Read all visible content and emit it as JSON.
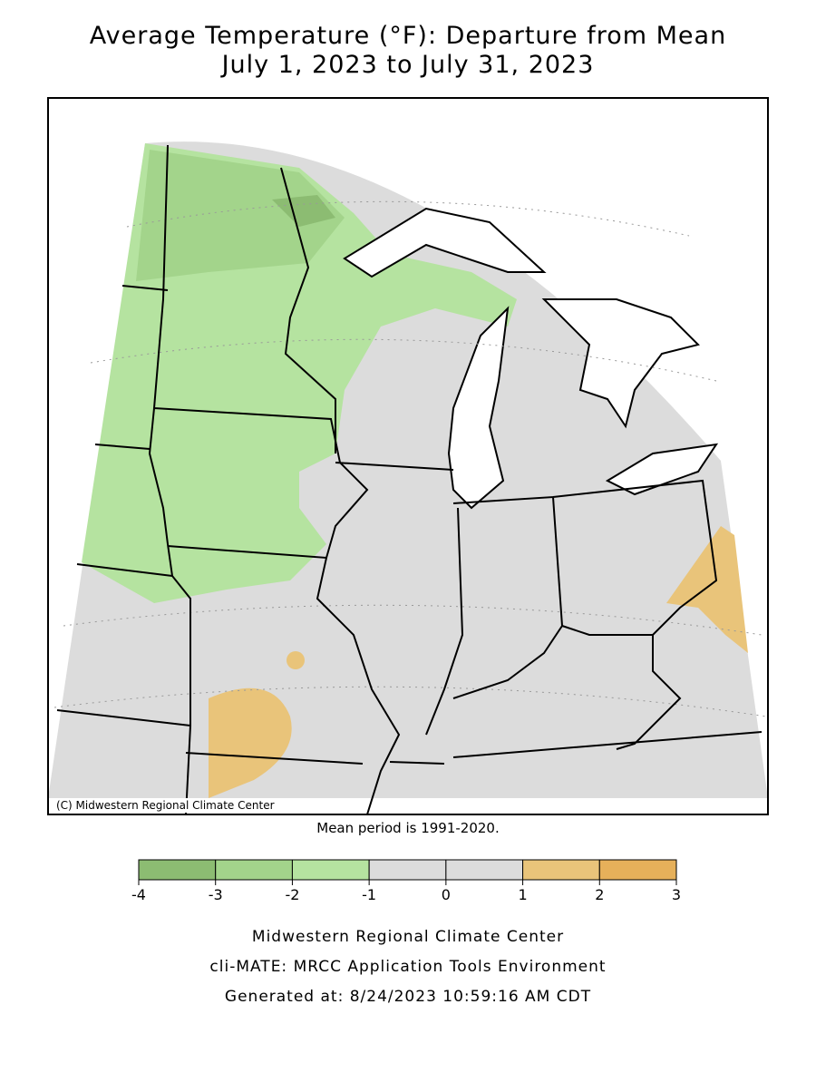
{
  "title": [
    "Average Temperature (°F): Departure from Mean",
    "July 1, 2023 to July 31, 2023"
  ],
  "map": {
    "copyright": "(C) Midwestern Regional Climate Center"
  },
  "note": "Mean period is 1991-2020.",
  "legend": {
    "bins": [
      -4,
      -3,
      -2,
      -1,
      0,
      1,
      2,
      3
    ],
    "colors": [
      "#8cbc72",
      "#a3d48b",
      "#b5e3a0",
      "#dcdcdc",
      "#dcdcdc",
      "#e9c47a",
      "#e6b05a"
    ]
  },
  "footer": [
    "Midwestern Regional Climate Center",
    "cli-MATE: MRCC Application Tools Environment",
    "Generated at: 8/24/2023 10:59:16 AM CDT"
  ]
}
